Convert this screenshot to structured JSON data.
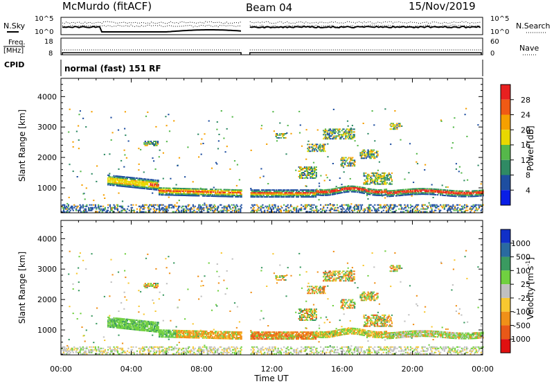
{
  "header": {
    "station": "McMurdo (fitACF)",
    "beam": "Beam 04",
    "date": "15/Nov/2019",
    "mode": "normal (fast) 151 RF"
  },
  "aux_panels": {
    "nsky_label": "N.Sky",
    "nsearch_label": "N.Search",
    "noise_ticks": [
      "10^5",
      "10^0"
    ],
    "noise_ticks_right": [
      "10^5",
      "10^0"
    ],
    "freq_label_1": "Freq.",
    "freq_label_2": "[MHz]",
    "freq_ticks": [
      "18",
      "8"
    ],
    "nave_label": "Nave",
    "nave_ticks": [
      "60",
      "0"
    ],
    "cpid_label": "CPID"
  },
  "chart_data": [
    {
      "type": "heatmap",
      "panel": "power",
      "xlabel": "",
      "ylabel": "Slant Range [km]",
      "x_ticks": [
        "00:00",
        "04:00",
        "08:00",
        "12:00",
        "16:00",
        "20:00",
        "00:00"
      ],
      "y_ticks": [
        "1000",
        "2000",
        "3000",
        "4000"
      ],
      "x_range_hours": [
        0,
        24
      ],
      "y_range_km": [
        180,
        4600
      ],
      "data_gap_hours": [
        10.25,
        10.75
      ],
      "colorbar": {
        "label": "Power [dB]",
        "ticks": [
          "28",
          "24",
          "20",
          "16",
          "12",
          "8",
          "4"
        ],
        "colors": [
          "#e82020",
          "#f05a14",
          "#f5a000",
          "#e8d800",
          "#55b84a",
          "#2f8a64",
          "#1e4ea0",
          "#0a1ee6"
        ]
      }
    },
    {
      "type": "heatmap",
      "panel": "velocity",
      "xlabel": "Time UT",
      "ylabel": "Slant Range [km]",
      "x_ticks": [
        "00:00",
        "04:00",
        "08:00",
        "12:00",
        "16:00",
        "20:00",
        "00:00"
      ],
      "y_ticks": [
        "1000",
        "2000",
        "3000",
        "4000"
      ],
      "x_range_hours": [
        0,
        24
      ],
      "y_range_km": [
        180,
        4600
      ],
      "data_gap_hours": [
        10.25,
        10.75
      ],
      "colorbar": {
        "label": "Velocity [m s^-1]",
        "ticks": [
          "1000",
          "500",
          "100",
          "25",
          "-25",
          "-100",
          "-500",
          "-1000"
        ],
        "colors": [
          "#1030c8",
          "#2a6aa0",
          "#3a9a60",
          "#70d040",
          "#c0c0c0",
          "#f8c830",
          "#f09018",
          "#e85818",
          "#e01010"
        ]
      }
    }
  ],
  "colors": {
    "ground_scatter": "#a0a0a0",
    "axis": "#000000"
  }
}
